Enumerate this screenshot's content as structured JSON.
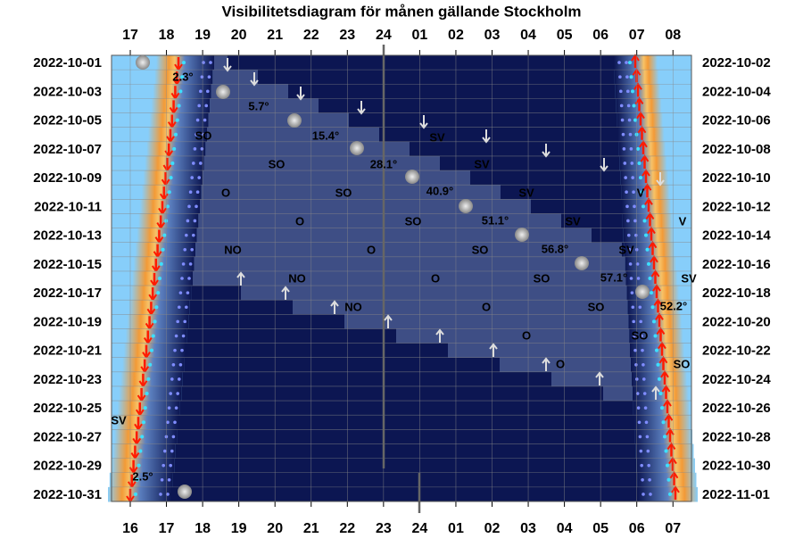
{
  "chart_data": {
    "type": "visibility",
    "title": "Visibilitetsdiagram för månen gällande Stockholm",
    "top_hours": [
      "17",
      "18",
      "19",
      "20",
      "21",
      "22",
      "23",
      "24",
      "01",
      "02",
      "03",
      "04",
      "05",
      "06",
      "07",
      "08"
    ],
    "bottom_hours": [
      "16",
      "17",
      "18",
      "19",
      "20",
      "21",
      "22",
      "23",
      "24",
      "01",
      "02",
      "03",
      "04",
      "05",
      "06",
      "07"
    ],
    "left_dates": [
      "2022-10-01",
      "2022-10-03",
      "2022-10-05",
      "2022-10-07",
      "2022-10-09",
      "2022-10-11",
      "2022-10-13",
      "2022-10-15",
      "2022-10-17",
      "2022-10-19",
      "2022-10-21",
      "2022-10-23",
      "2022-10-25",
      "2022-10-27",
      "2022-10-29",
      "2022-10-31"
    ],
    "right_dates": [
      "2022-10-02",
      "2022-10-04",
      "2022-10-06",
      "2022-10-08",
      "2022-10-10",
      "2022-10-12",
      "2022-10-14",
      "2022-10-16",
      "2022-10-18",
      "2022-10-20",
      "2022-10-22",
      "2022-10-24",
      "2022-10-26",
      "2022-10-28",
      "2022-10-30",
      "2022-11-01"
    ],
    "altitudes": [
      "2.3°",
      "5.7°",
      "15.4°",
      "28.1°",
      "40.9°",
      "51.1°",
      "56.8°",
      "57.1°",
      "52.2°",
      "2.5°"
    ],
    "directions": [
      "SO",
      "SV",
      "SO",
      "SV",
      "O",
      "SO",
      "SV",
      "V",
      "O",
      "SO",
      "SV",
      "V",
      "NO",
      "O",
      "SO",
      "SV",
      "NO",
      "O",
      "SO",
      "SV",
      "NO",
      "O",
      "SO",
      "O",
      "SO",
      "O",
      "SO",
      "SV"
    ]
  }
}
